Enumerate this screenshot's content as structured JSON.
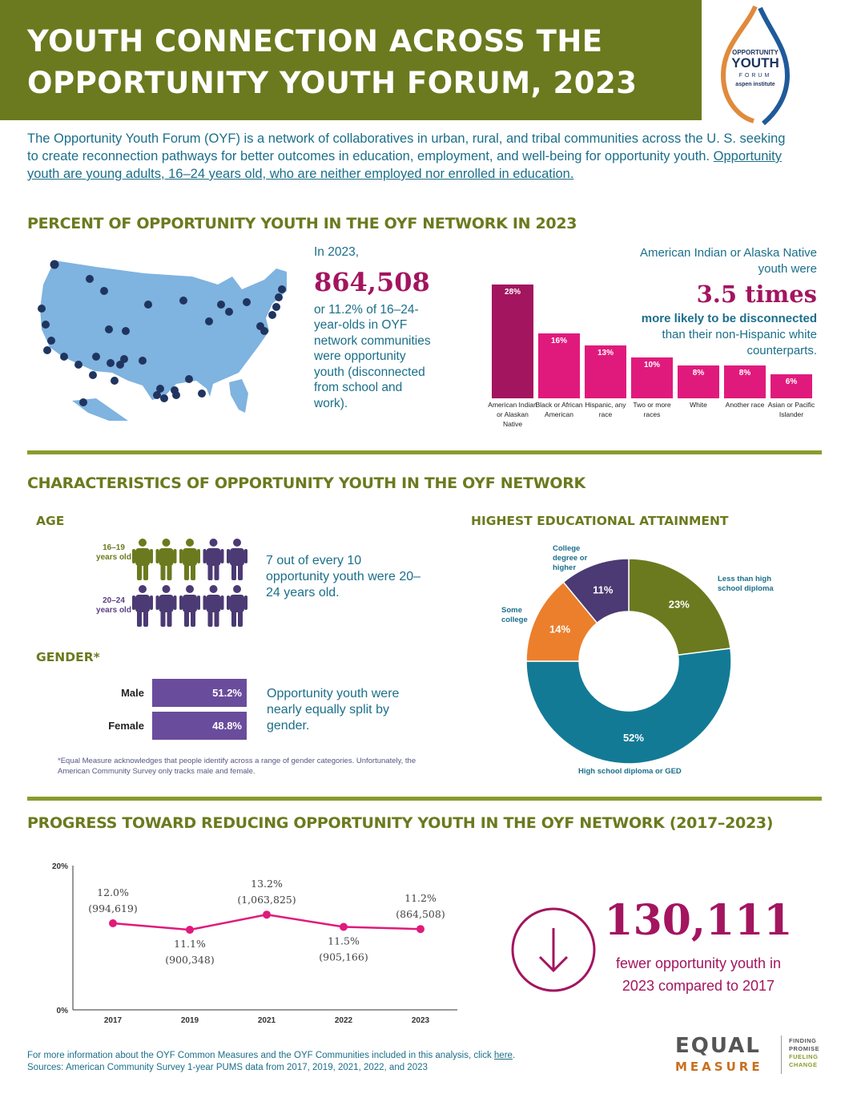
{
  "header": {
    "title_line1": "YOUTH CONNECTION ACROSS THE",
    "title_line2": "OPPORTUNITY YOUTH FORUM, 2023",
    "bg_color": "#6b7a1e"
  },
  "logo": {
    "line1": "OPPORTUNITY",
    "line2": "YOUTH",
    "line3": "FORUM",
    "line4": "aspen institute"
  },
  "intro": {
    "text": "The Opportunity Youth Forum (OYF) is a network of collaboratives in urban, rural, and tribal communities across the U. S. seeking to create reconnection pathways for better outcomes in education, employment, and well-being for opportunity youth. ",
    "underlined": "Opportunity youth are young adults, 16–24 years old, who are neither employed nor enrolled in education."
  },
  "section1": {
    "title": "PERCENT OF OPPORTUNITY YOUTH IN THE OYF NETWORK IN 2023",
    "stat_intro": "In 2023,",
    "stat_value": "864,508",
    "stat_desc": "or 11.2% of 16–24-year-olds in OYF network communities were opportunity youth (disconnected from school and work).",
    "race_note_pre": "American Indian or Alaska Native youth were",
    "race_note_times": "3.5 times",
    "race_note_bold": "more likely to be disconnected",
    "race_note_post": "than their non-Hispanic white counterparts."
  },
  "chart_data": [
    {
      "type": "bar",
      "categories": [
        "American Indian or Alaskan Native",
        "Black or African American",
        "Hispanic, any race",
        "Two or more races",
        "White",
        "Another race",
        "Asian or Pacific Islander"
      ],
      "values": [
        28,
        16,
        13,
        10,
        8,
        8,
        6
      ],
      "value_labels": [
        "28%",
        "16%",
        "13%",
        "10%",
        "8%",
        "8%",
        "6%"
      ],
      "colors": [
        "#a3155f",
        "#e01a7c",
        "#e01a7c",
        "#e01a7c",
        "#e01a7c",
        "#e01a7c",
        "#e01a7c"
      ]
    },
    {
      "type": "pie",
      "title": "HIGHEST EDUCATIONAL ATTAINMENT",
      "categories": [
        "Less than high school diploma",
        "High school diploma or GED",
        "Some college",
        "College degree or higher"
      ],
      "values": [
        23,
        52,
        14,
        11
      ],
      "value_labels": [
        "23%",
        "52%",
        "14%",
        "11%"
      ],
      "colors": [
        "#6b7a1e",
        "#137a96",
        "#ec7f2c",
        "#4b3a73"
      ]
    },
    {
      "type": "line",
      "x": [
        "2017",
        "2019",
        "2021",
        "2022",
        "2023"
      ],
      "values": [
        12.0,
        11.1,
        13.2,
        11.5,
        11.2
      ],
      "value_labels": [
        "12.0%",
        "11.1%",
        "13.2%",
        "11.5%",
        "11.2%"
      ],
      "count_labels": [
        "(994,619)",
        "(900,348)",
        "(1,063,825)",
        "(905,166)",
        "(864,508)"
      ],
      "ylim": [
        0,
        20
      ],
      "y_ticks": [
        "0%",
        "20%"
      ],
      "color": "#e01a7c"
    }
  ],
  "section2": {
    "title": "CHARACTERISTICS OF OPPORTUNITY YOUTH IN THE OYF NETWORK",
    "age_title": "AGE",
    "age_group1": "16–19 years old",
    "age_group2": "20–24 years old",
    "age_text": "7 out of every 10 opportunity youth were 20–24 years old.",
    "age_young_count": 3,
    "age_total_per_row": 5,
    "gender_title": "GENDER*",
    "male_label": "Male",
    "male_value": "51.2%",
    "female_label": "Female",
    "female_value": "48.8%",
    "gender_text": "Opportunity youth were nearly equally split by gender.",
    "footnote": "*Equal Measure acknowledges that people identify across a range of gender categories. Unfortunately, the  American Community Survey only tracks male and female.",
    "edu_title": "HIGHEST EDUCATIONAL ATTAINMENT"
  },
  "section3": {
    "title": "PROGRESS TOWARD REDUCING OPPORTUNITY YOUTH IN THE OYF NETWORK (2017–2023)",
    "big_number": "130,111",
    "big_desc": "fewer opportunity youth in 2023 compared to 2017"
  },
  "footer": {
    "note_line1_pre": "For more information about the OYF Common Measures and the OYF Communities included in this analysis, click ",
    "note_link": "here",
    "note_line1_post": ".",
    "note_line2": "Sources: American Community Survey 1-year PUMS data from 2017, 2019, 2021, 2022, and 2023",
    "brand_line1": "EQUAL",
    "brand_line2": "MEASURE",
    "tag1": "FINDING",
    "tag2": "PROMISE",
    "tag3": "FUELING",
    "tag4": "CHANGE"
  },
  "colors": {
    "olive": "#6b7a1e",
    "teal": "#1b6f8a",
    "magenta": "#a3155f",
    "pink": "#e01a7c",
    "purple": "#6a4c9c",
    "map_blue": "#7fb3e0",
    "dot_navy": "#1f3560"
  }
}
